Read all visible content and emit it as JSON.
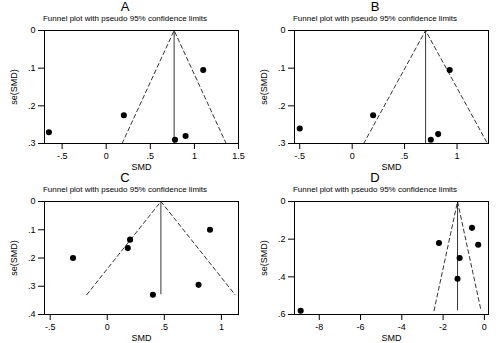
{
  "chart_data": [
    {
      "type": "scatter",
      "title": "A",
      "subtitle": "Funnel plot with pseudo 95% confidence limits",
      "x_label": "SMD",
      "y_label": "se(SMD)",
      "color": "#000000",
      "marker": "circle",
      "x": [
        -0.65,
        0.2,
        0.78,
        0.9,
        1.1
      ],
      "y": [
        0.27,
        0.225,
        0.29,
        0.28,
        0.105
      ],
      "funnel_x": [
        0.18,
        0.77,
        1.36
      ],
      "funnel_y": [
        0.3,
        0,
        0.3
      ],
      "xlim": [
        -0.7,
        1.5
      ],
      "ylim": [
        0,
        0.3
      ],
      "xticks": [
        {
          "value": -0.5,
          "label": "-.5"
        },
        0,
        {
          "value": 0.5,
          "label": ".5"
        },
        1,
        1.5
      ],
      "yticks": [
        0,
        {
          "value": 0.1,
          "label": ".1"
        },
        {
          "value": 0.2,
          "label": ".2"
        },
        {
          "value": 0.3,
          "label": ".3"
        }
      ]
    },
    {
      "type": "scatter",
      "title": "B",
      "subtitle": "Funnel plot with pseudo 95% confidence limits",
      "x_label": "SMD",
      "y_label": "se(SMD)",
      "color": "#000000",
      "marker": "circle",
      "x": [
        -0.5,
        0.2,
        0.75,
        0.82,
        0.93
      ],
      "y": [
        0.26,
        0.225,
        0.29,
        0.275,
        0.105
      ],
      "funnel_x": [
        0.11,
        0.7,
        1.29
      ],
      "funnel_y": [
        0.3,
        0,
        0.3
      ],
      "xlim": [
        -0.55,
        1.3
      ],
      "ylim": [
        0,
        0.3
      ],
      "xticks": [
        {
          "value": -0.5,
          "label": "-.5"
        },
        0,
        {
          "value": 0.5,
          "label": ".5"
        },
        1
      ],
      "yticks": [
        0,
        {
          "value": 0.1,
          "label": ".1"
        },
        {
          "value": 0.2,
          "label": ".2"
        },
        {
          "value": 0.3,
          "label": ".3"
        }
      ]
    },
    {
      "type": "scatter",
      "title": "C",
      "subtitle": "Funnel plot with pseudo 95% confidence limits",
      "x_label": "SMD",
      "y_label": "se(SMD)",
      "color": "#000000",
      "marker": "circle",
      "x": [
        -0.3,
        0.2,
        0.18,
        0.4,
        0.8,
        0.9
      ],
      "y": [
        0.2,
        0.135,
        0.165,
        0.33,
        0.295,
        0.1
      ],
      "funnel_x": [
        -0.18,
        0.47,
        1.12
      ],
      "funnel_y": [
        0.33,
        0,
        0.33
      ],
      "xlim": [
        -0.55,
        1.15
      ],
      "ylim": [
        0,
        0.4
      ],
      "xticks": [
        {
          "value": -0.5,
          "label": "-.5"
        },
        0,
        {
          "value": 0.5,
          "label": ".5"
        },
        1
      ],
      "yticks": [
        0,
        {
          "value": 0.1,
          "label": ".1"
        },
        {
          "value": 0.2,
          "label": ".2"
        },
        {
          "value": 0.3,
          "label": ".3"
        },
        {
          "value": 0.4,
          "label": ".4"
        }
      ]
    },
    {
      "type": "scatter",
      "title": "D",
      "subtitle": "Funnel plot with pseudo 95% confidence limits",
      "x_label": "SMD",
      "y_label": "se(SMD)",
      "color": "#000000",
      "marker": "circle",
      "x": [
        -8.9,
        -2.2,
        -1.2,
        -1.3,
        -0.6,
        -0.3
      ],
      "y": [
        0.58,
        0.22,
        0.3,
        0.41,
        0.14,
        0.23
      ],
      "funnel_x": [
        -2.44,
        -1.3,
        -0.16
      ],
      "funnel_y": [
        0.58,
        0,
        0.58
      ],
      "xlim": [
        -9.2,
        0.2
      ],
      "ylim": [
        0,
        0.6
      ],
      "xticks": [
        -8,
        -6,
        -4,
        -2,
        0
      ],
      "yticks": [
        0,
        {
          "value": 0.2,
          "label": ".2"
        },
        {
          "value": 0.4,
          "label": ".4"
        },
        {
          "value": 0.6,
          "label": ".6"
        }
      ]
    }
  ]
}
